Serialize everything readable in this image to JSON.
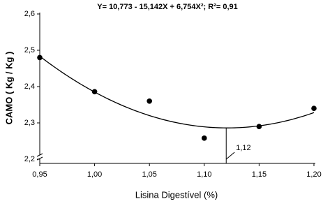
{
  "chart_data": {
    "type": "scatter",
    "title": "Y= 10,773 - 15,142X + 6,754X²; R²= 0,91",
    "x_label": "Lisina Digestível (%)",
    "y_label": "CAMO ( Kg / Kg )",
    "x": [
      0.95,
      1.0,
      1.05,
      1.1,
      1.15,
      1.2
    ],
    "values": [
      2.48,
      2.386,
      2.36,
      2.258,
      2.29,
      2.34
    ],
    "color": "#000000",
    "fit": {
      "coefficients": [
        10.773,
        -15.142,
        6.754
      ]
    },
    "annotation": {
      "value": 1.12,
      "label": "1,12"
    },
    "xlim": [
      0.95,
      1.2
    ],
    "xticks": [
      {
        "value": 0.95,
        "label": "0,95"
      },
      {
        "value": 1.0,
        "label": "1,00"
      },
      {
        "value": 1.05,
        "label": "1,05"
      },
      {
        "value": 1.1,
        "label": "1,10"
      },
      {
        "value": 1.15,
        "label": "1,15"
      },
      {
        "value": 1.2,
        "label": "1,20"
      }
    ],
    "ylim": [
      2.2,
      2.6
    ],
    "yticks": [
      {
        "value": 2.2,
        "label": "2,2"
      },
      {
        "value": 2.3,
        "label": "2,3"
      },
      {
        "value": 2.4,
        "label": "2,4"
      },
      {
        "value": 2.5,
        "label": "2,5"
      },
      {
        "value": 2.6,
        "label": "2,6"
      }
    ],
    "grid": false
  }
}
